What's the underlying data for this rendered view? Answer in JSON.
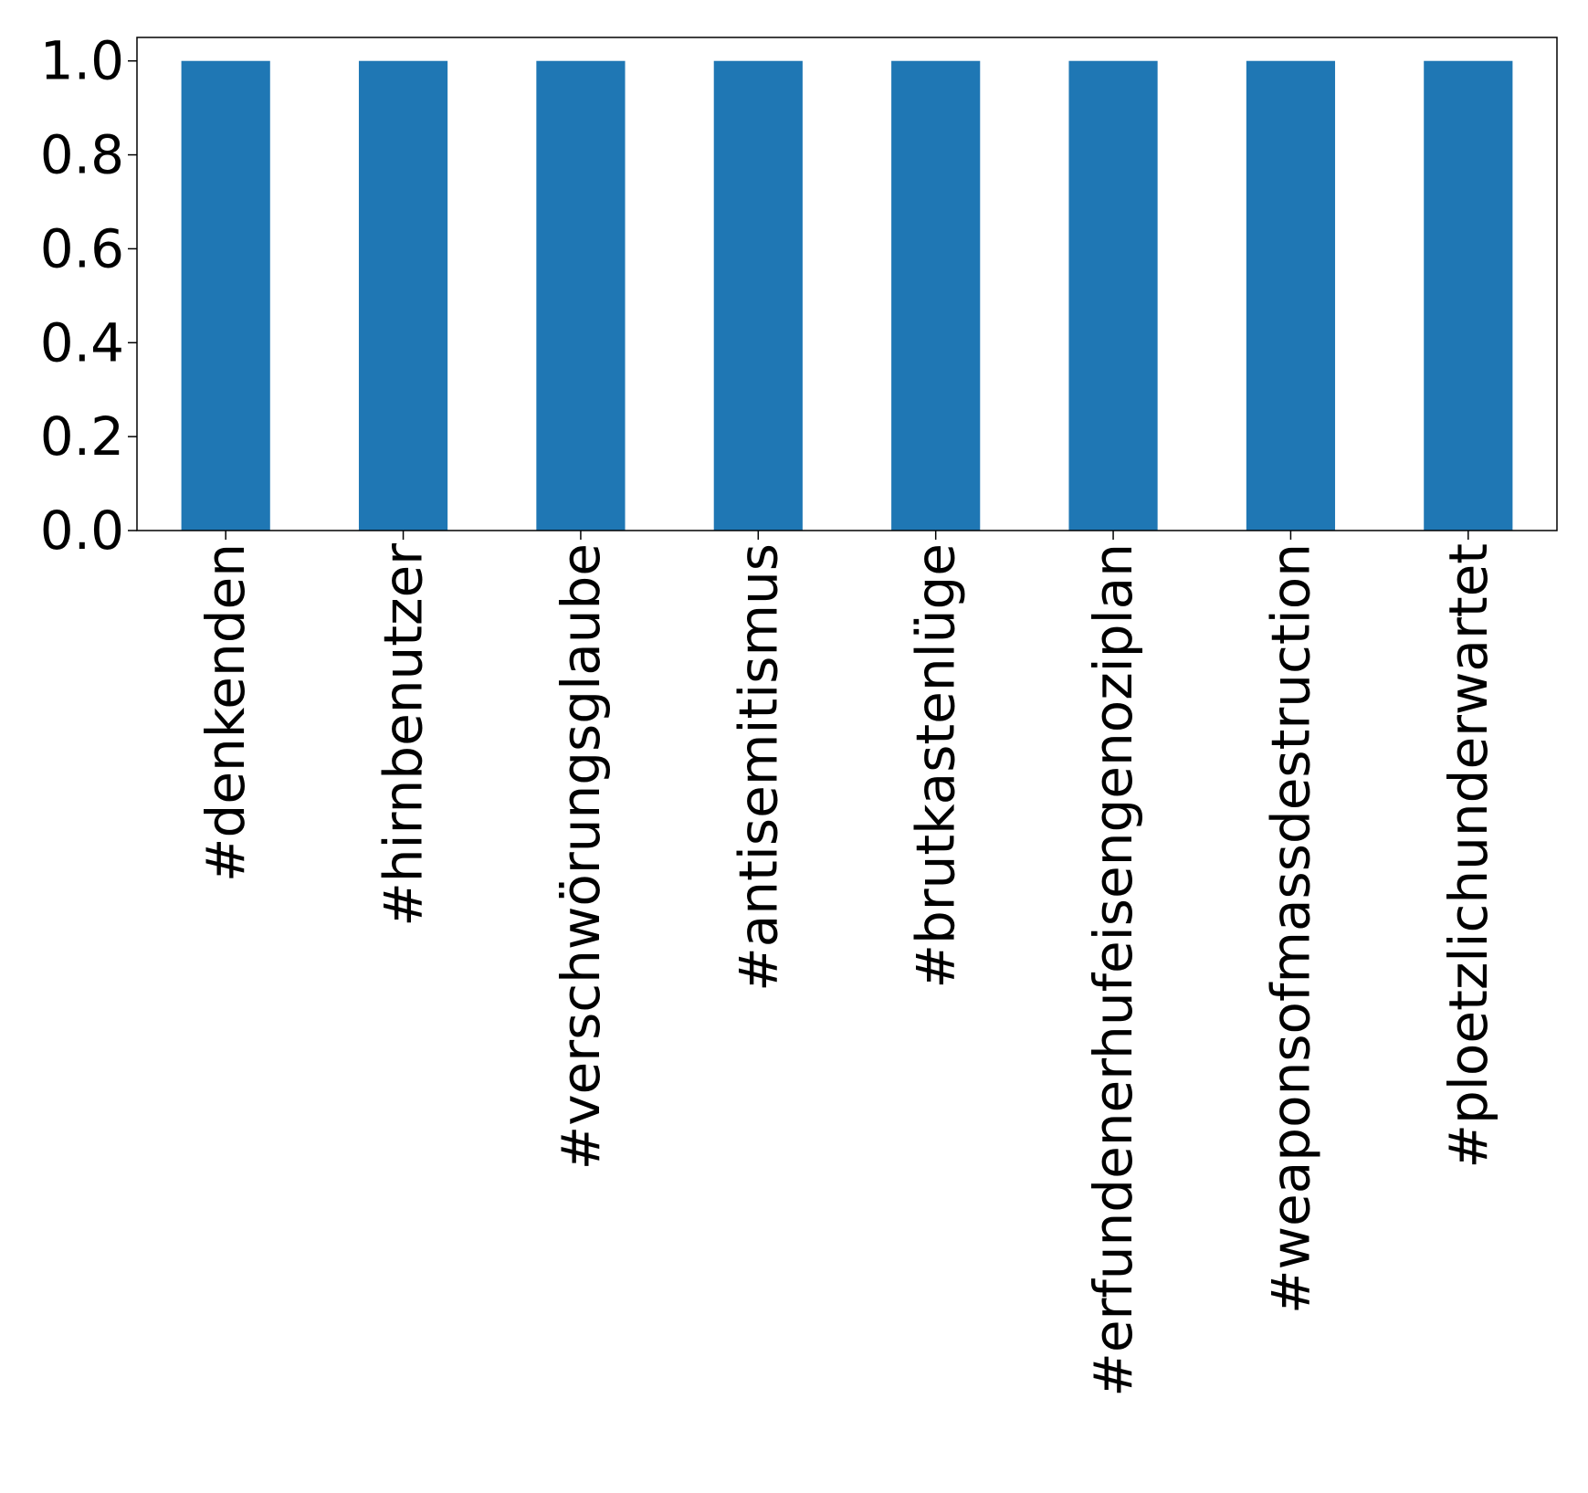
{
  "chart_data": {
    "type": "bar",
    "categories": [
      "#denkenden",
      "#hirnbenutzer",
      "#verschwörungsglaube",
      "#antisemitismus",
      "#brutkastenlüge",
      "#erfundenerhufeisengenoziplan",
      "#weaponsofmassdestruction",
      "#ploetzlichunderwartet"
    ],
    "values": [
      1.0,
      1.0,
      1.0,
      1.0,
      1.0,
      1.0,
      1.0,
      1.0
    ],
    "ylim": [
      0,
      1.05
    ],
    "yticks": [
      "0.0",
      "0.2",
      "0.4",
      "0.6",
      "0.8",
      "1.0"
    ],
    "grid": false,
    "bar_color": "#1f77b4"
  }
}
